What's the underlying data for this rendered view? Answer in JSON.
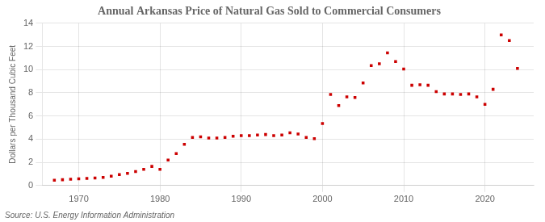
{
  "chart_data": {
    "type": "scatter",
    "title": "Annual Arkansas Price of Natural Gas Sold to Commercial Consumers",
    "ylabel": "Dollars per Thousand Cubic Feet",
    "source": "Source: U.S. Energy Information Administration",
    "x": [
      1967,
      1968,
      1969,
      1970,
      1971,
      1972,
      1973,
      1974,
      1975,
      1976,
      1977,
      1978,
      1979,
      1980,
      1981,
      1982,
      1983,
      1984,
      1985,
      1986,
      1987,
      1988,
      1989,
      1990,
      1991,
      1992,
      1993,
      1994,
      1995,
      1996,
      1997,
      1998,
      1999,
      2000,
      2001,
      2002,
      2003,
      2004,
      2005,
      2006,
      2007,
      2008,
      2009,
      2010,
      2011,
      2012,
      2013,
      2014,
      2015,
      2016,
      2017,
      2018,
      2019,
      2020,
      2021,
      2022,
      2023,
      2024
    ],
    "values": [
      0.45,
      0.5,
      0.55,
      0.58,
      0.62,
      0.65,
      0.7,
      0.8,
      0.95,
      1.05,
      1.2,
      1.4,
      1.65,
      1.4,
      2.2,
      2.75,
      3.55,
      4.15,
      4.2,
      4.1,
      4.1,
      4.15,
      4.25,
      4.3,
      4.3,
      4.35,
      4.4,
      4.3,
      4.35,
      4.55,
      4.45,
      4.15,
      4.05,
      5.35,
      7.85,
      6.9,
      7.65,
      7.6,
      8.85,
      10.35,
      10.5,
      11.45,
      10.7,
      10.05,
      8.65,
      8.7,
      8.65,
      8.1,
      7.9,
      7.9,
      7.85,
      7.9,
      7.65,
      7.0,
      8.3,
      13.0,
      12.5,
      10.1
    ],
    "color": "#cc0000",
    "marker": "square",
    "xlim": [
      1965.5,
      2026
    ],
    "ylim": [
      0,
      14
    ],
    "xticks": [
      1970,
      1980,
      1990,
      2000,
      2010,
      2020
    ],
    "yticks": [
      0,
      2,
      4,
      6,
      8,
      10,
      12,
      14
    ],
    "grid": true
  }
}
